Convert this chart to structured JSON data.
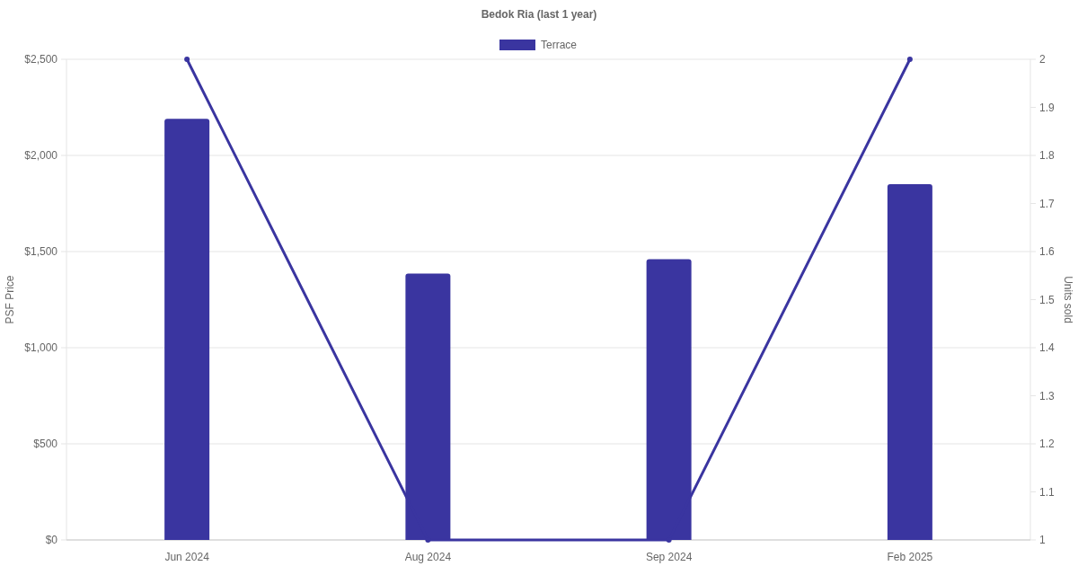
{
  "chart_data": {
    "type": "bar",
    "title": "Bedok Ria (last 1 year)",
    "ylabel": "PSF Price",
    "y2label": "Units sold",
    "categories": [
      "Jun 2024",
      "Aug 2024",
      "Sep 2024",
      "Feb 2025"
    ],
    "series": [
      {
        "name": "Terrace",
        "color": "#3a35a0",
        "values": [
          2190,
          1385,
          1460,
          1850
        ]
      },
      {
        "type": "line",
        "axis": "y2",
        "color": "#3a35a0",
        "values": [
          2,
          1,
          1,
          2
        ]
      }
    ],
    "ylim": [
      0,
      2500
    ],
    "yticks": [
      {
        "value": 0,
        "label": "$0"
      },
      {
        "value": 500,
        "label": "$500"
      },
      {
        "value": 1000,
        "label": "$1,000"
      },
      {
        "value": 1500,
        "label": "$1,500"
      },
      {
        "value": 2000,
        "label": "$2,000"
      },
      {
        "value": 2500,
        "label": "$2,500"
      }
    ],
    "y2lim": [
      1,
      2
    ],
    "y2ticks": [
      1,
      1.1,
      1.2,
      1.3,
      1.4,
      1.5,
      1.6,
      1.7,
      1.8,
      1.9,
      2
    ],
    "grid": "y",
    "legend": "top",
    "marker": "circle",
    "line_style": "solid"
  }
}
